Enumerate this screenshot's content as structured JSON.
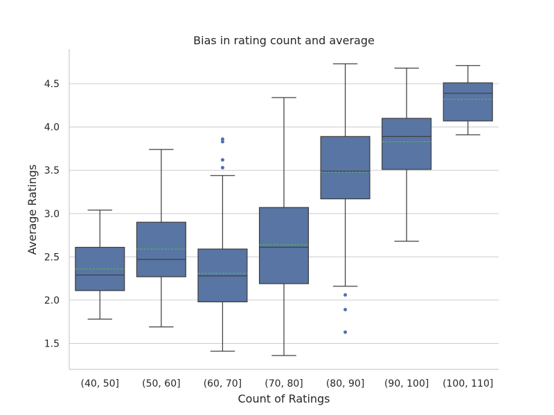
{
  "chart_data": {
    "type": "box",
    "title": "Bias in rating count and average",
    "xlabel": "Count of Ratings",
    "ylabel": "Average Ratings",
    "ylim": [
      1.2,
      4.9
    ],
    "yticks": [
      "1.5",
      "2.0",
      "2.5",
      "3.0",
      "3.5",
      "4.0",
      "4.5"
    ],
    "grid": "horizontal",
    "box_color": "#5875a4",
    "edge_color": "#3f3f3f",
    "mean_color": "#5cb85c",
    "outlier_color": "#4c72b0",
    "categories": [
      "(40, 50]",
      "(50, 60]",
      "(60, 70]",
      "(70, 80]",
      "(80, 90]",
      "(90, 100]",
      "(100, 110]"
    ],
    "boxes": [
      {
        "category": "(40, 50]",
        "whisker_low": 1.78,
        "q1": 2.11,
        "median": 2.29,
        "q3": 2.61,
        "whisker_high": 3.04,
        "mean": 2.36,
        "outliers": []
      },
      {
        "category": "(50, 60]",
        "whisker_low": 1.69,
        "q1": 2.27,
        "median": 2.47,
        "q3": 2.9,
        "whisker_high": 3.74,
        "mean": 2.59,
        "outliers": []
      },
      {
        "category": "(60, 70]",
        "whisker_low": 1.41,
        "q1": 1.98,
        "median": 2.28,
        "q3": 2.59,
        "whisker_high": 3.44,
        "mean": 2.31,
        "outliers": [
          3.53,
          3.62,
          3.83,
          3.86
        ]
      },
      {
        "category": "(70, 80]",
        "whisker_low": 1.36,
        "q1": 2.19,
        "median": 2.61,
        "q3": 3.07,
        "whisker_high": 4.34,
        "mean": 2.64,
        "outliers": []
      },
      {
        "category": "(80, 90]",
        "whisker_low": 2.16,
        "q1": 3.17,
        "median": 3.49,
        "q3": 3.89,
        "whisker_high": 4.73,
        "mean": 3.48,
        "outliers": [
          1.63,
          1.89,
          2.06
        ]
      },
      {
        "category": "(90, 100]",
        "whisker_low": 2.68,
        "q1": 3.51,
        "median": 3.89,
        "q3": 4.1,
        "whisker_high": 4.68,
        "mean": 3.83,
        "outliers": []
      },
      {
        "category": "(100, 110]",
        "whisker_low": 3.91,
        "q1": 4.07,
        "median": 4.39,
        "q3": 4.51,
        "whisker_high": 4.71,
        "mean": 4.32,
        "outliers": []
      }
    ]
  }
}
